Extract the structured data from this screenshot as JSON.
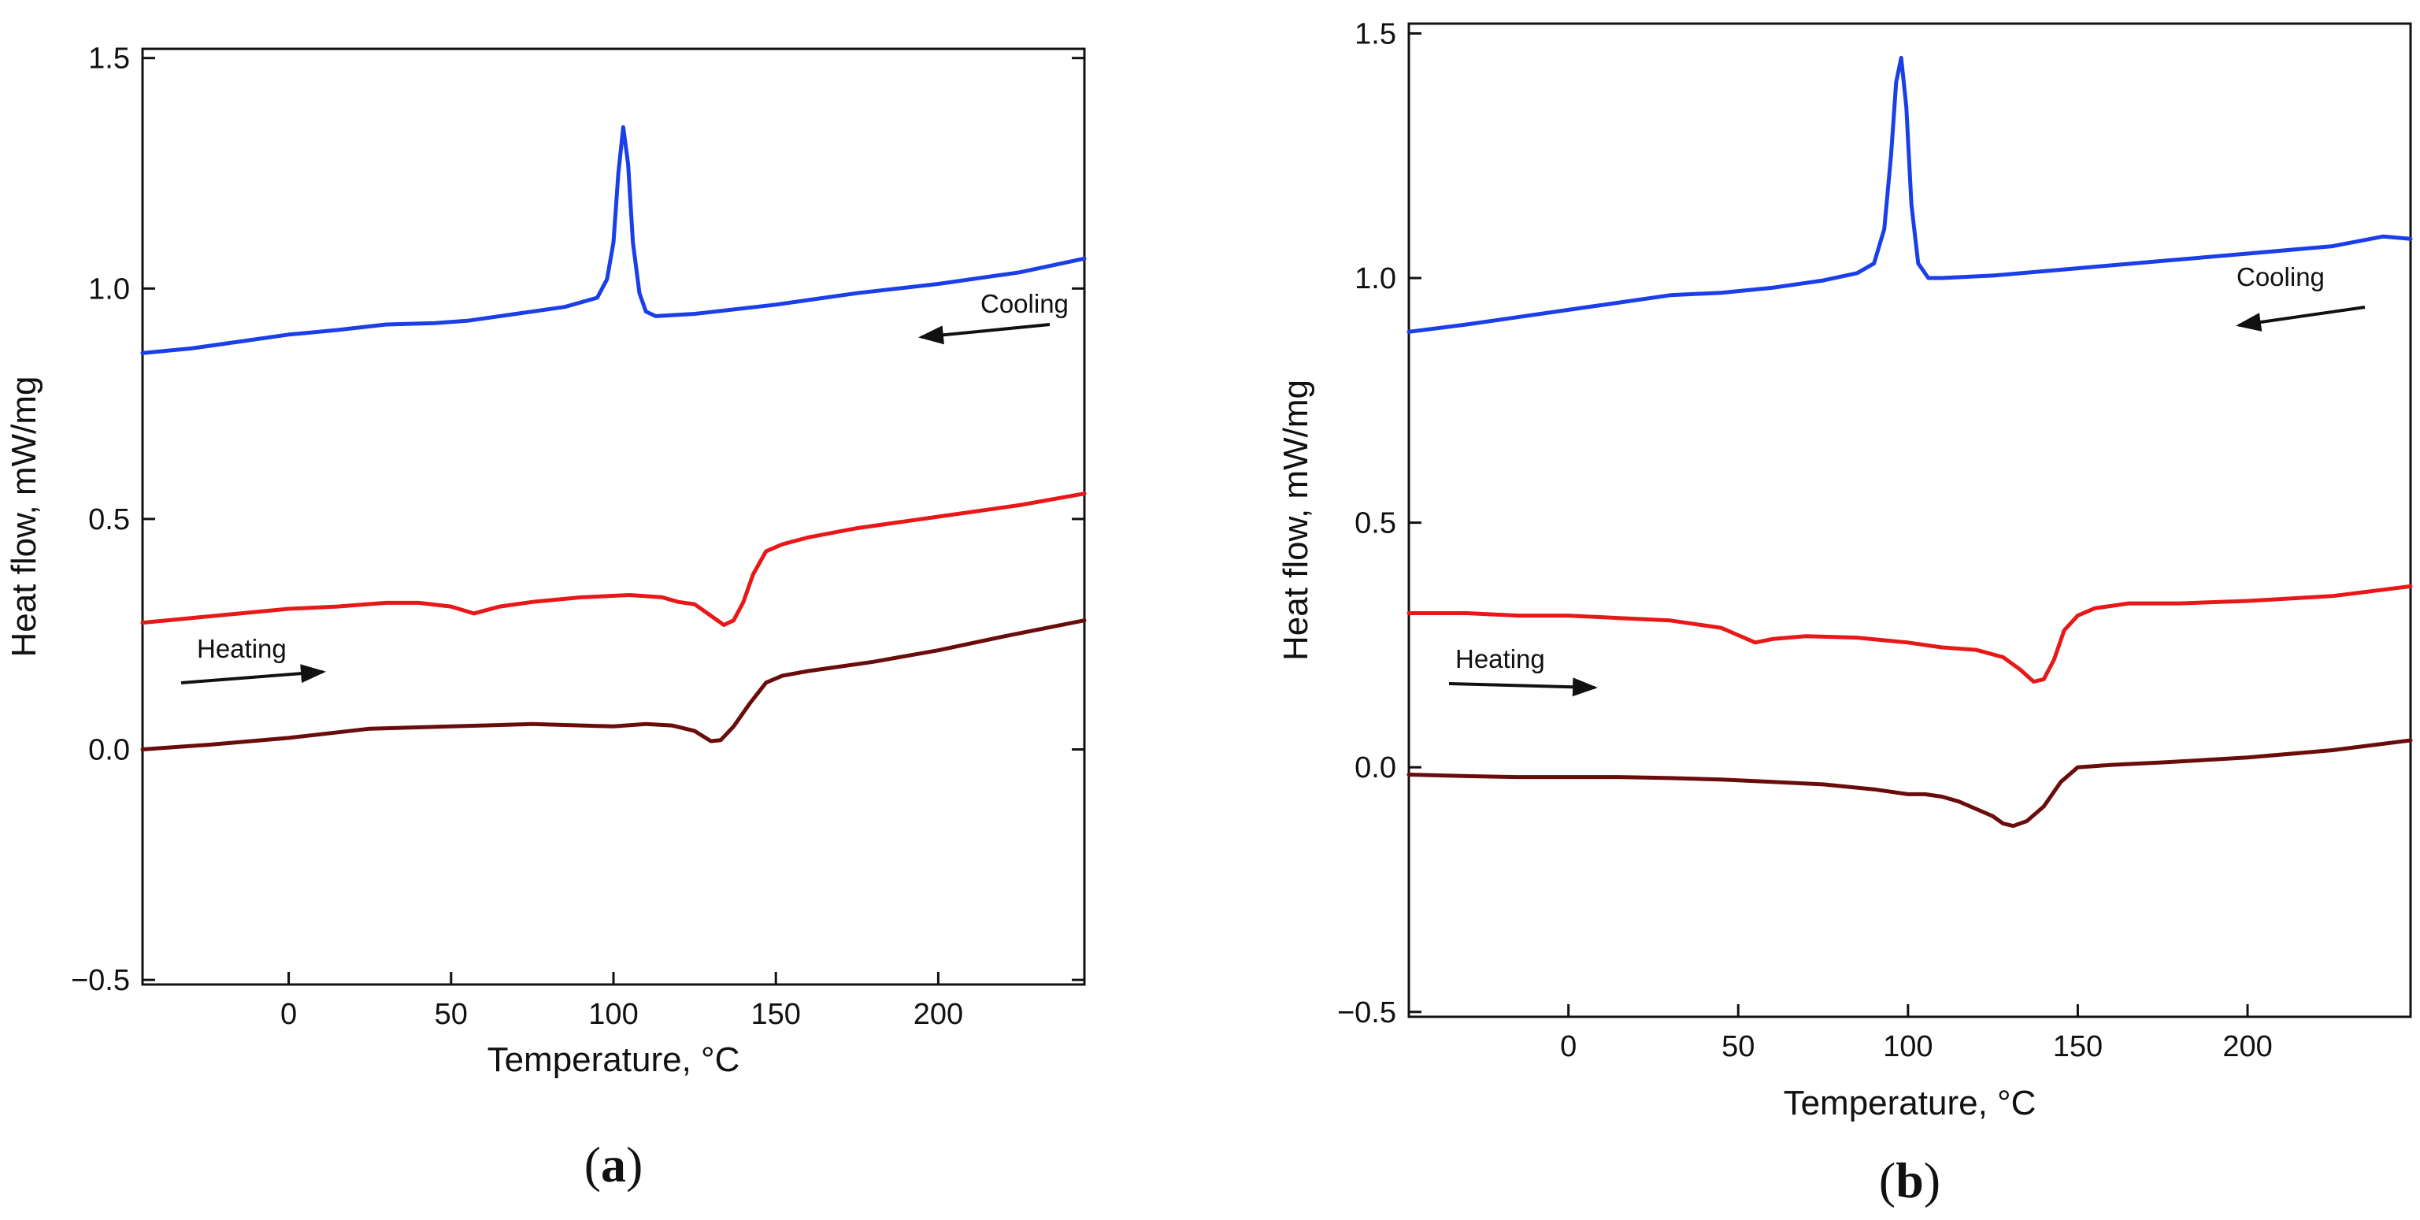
{
  "chart_data": [
    {
      "type": "line",
      "panel_label": "a",
      "xlabel": "Temperature, °C",
      "ylabel": "Heat flow, mW/mg",
      "xlim": [
        -45,
        245
      ],
      "ylim": [
        -0.51,
        1.52
      ],
      "xticks": [
        0,
        50,
        100,
        150,
        200
      ],
      "yticks": [
        -0.5,
        0.0,
        0.5,
        1.0,
        1.5
      ],
      "ytick_labels": [
        "−0.5",
        "0.0",
        "0.5",
        "1.0",
        "1.5"
      ],
      "grid": false,
      "series": [
        {
          "name": "Cooling",
          "color": "#1a3fe8",
          "x": [
            -45,
            -30,
            -15,
            0,
            15,
            30,
            45,
            55,
            70,
            85,
            95,
            98,
            100,
            101.5,
            103,
            104.5,
            106,
            108,
            110,
            113,
            125,
            150,
            175,
            200,
            225,
            245
          ],
          "y": [
            0.86,
            0.87,
            0.885,
            0.9,
            0.91,
            0.922,
            0.925,
            0.93,
            0.945,
            0.96,
            0.98,
            1.02,
            1.1,
            1.25,
            1.35,
            1.27,
            1.1,
            0.99,
            0.95,
            0.94,
            0.945,
            0.965,
            0.99,
            1.01,
            1.035,
            1.065
          ]
        },
        {
          "name": "Heating (red)",
          "color": "#e81818",
          "x": [
            -45,
            -30,
            -15,
            0,
            15,
            30,
            40,
            50,
            57,
            65,
            75,
            90,
            105,
            115,
            120,
            125,
            130,
            134,
            137,
            140,
            143,
            147,
            152,
            160,
            175,
            200,
            225,
            245
          ],
          "y": [
            0.275,
            0.285,
            0.295,
            0.305,
            0.31,
            0.318,
            0.318,
            0.31,
            0.295,
            0.31,
            0.32,
            0.33,
            0.335,
            0.33,
            0.32,
            0.315,
            0.29,
            0.27,
            0.28,
            0.32,
            0.38,
            0.43,
            0.445,
            0.46,
            0.48,
            0.505,
            0.53,
            0.555
          ]
        },
        {
          "name": "Heating (dark red)",
          "color": "#6a0c0c",
          "x": [
            -45,
            -25,
            0,
            25,
            50,
            75,
            100,
            110,
            118,
            125,
            130,
            133,
            137,
            142,
            147,
            152,
            160,
            180,
            200,
            220,
            245
          ],
          "y": [
            0.0,
            0.01,
            0.025,
            0.045,
            0.05,
            0.055,
            0.05,
            0.055,
            0.052,
            0.04,
            0.018,
            0.02,
            0.05,
            0.1,
            0.145,
            0.16,
            0.17,
            0.19,
            0.215,
            0.245,
            0.28
          ]
        }
      ],
      "annotations": [
        {
          "text": "Cooling",
          "direction": "left"
        },
        {
          "text": "Heating",
          "direction": "right"
        }
      ]
    },
    {
      "type": "line",
      "panel_label": "b",
      "xlabel": "Temperature, °C",
      "ylabel": "Heat flow, mW/mg",
      "xlim": [
        -47,
        248
      ],
      "ylim": [
        -0.51,
        1.52
      ],
      "xticks": [
        0,
        50,
        100,
        150,
        200
      ],
      "yticks": [
        -0.5,
        0.0,
        0.5,
        1.0,
        1.5
      ],
      "ytick_labels": [
        "−0.5",
        "0.0",
        "0.5",
        "1.0",
        "1.5"
      ],
      "grid": false,
      "series": [
        {
          "name": "Cooling",
          "color": "#1a3fe8",
          "x": [
            -47,
            -30,
            -15,
            0,
            15,
            30,
            45,
            60,
            75,
            85,
            90,
            93,
            95,
            96.5,
            98,
            99.5,
            101,
            103,
            106,
            110,
            125,
            150,
            175,
            200,
            225,
            240,
            248
          ],
          "y": [
            0.89,
            0.905,
            0.92,
            0.935,
            0.95,
            0.965,
            0.97,
            0.98,
            0.995,
            1.01,
            1.03,
            1.1,
            1.25,
            1.4,
            1.45,
            1.35,
            1.15,
            1.03,
            1.0,
            1.0,
            1.005,
            1.02,
            1.035,
            1.05,
            1.065,
            1.085,
            1.08
          ]
        },
        {
          "name": "Heating (red)",
          "color": "#e81818",
          "x": [
            -47,
            -30,
            -15,
            0,
            15,
            30,
            45,
            50,
            55,
            60,
            70,
            85,
            100,
            110,
            120,
            128,
            133,
            137,
            140,
            143,
            146,
            150,
            155,
            165,
            180,
            200,
            225,
            248
          ],
          "y": [
            0.315,
            0.315,
            0.31,
            0.31,
            0.305,
            0.3,
            0.285,
            0.27,
            0.255,
            0.262,
            0.268,
            0.265,
            0.255,
            0.245,
            0.24,
            0.225,
            0.2,
            0.175,
            0.18,
            0.22,
            0.28,
            0.31,
            0.325,
            0.335,
            0.335,
            0.34,
            0.35,
            0.37
          ]
        },
        {
          "name": "Heating (dark red)",
          "color": "#6a0c0c",
          "x": [
            -47,
            -30,
            -15,
            0,
            15,
            30,
            45,
            60,
            75,
            90,
            100,
            105,
            110,
            115,
            120,
            125,
            128,
            131,
            135,
            140,
            145,
            150,
            160,
            175,
            200,
            225,
            248
          ],
          "y": [
            -0.015,
            -0.018,
            -0.02,
            -0.02,
            -0.02,
            -0.022,
            -0.025,
            -0.03,
            -0.035,
            -0.045,
            -0.055,
            -0.055,
            -0.06,
            -0.07,
            -0.085,
            -0.1,
            -0.115,
            -0.12,
            -0.11,
            -0.08,
            -0.03,
            0.0,
            0.005,
            0.01,
            0.02,
            0.035,
            0.055
          ]
        }
      ],
      "annotations": [
        {
          "text": "Cooling",
          "direction": "left"
        },
        {
          "text": "Heating",
          "direction": "right"
        }
      ]
    }
  ]
}
